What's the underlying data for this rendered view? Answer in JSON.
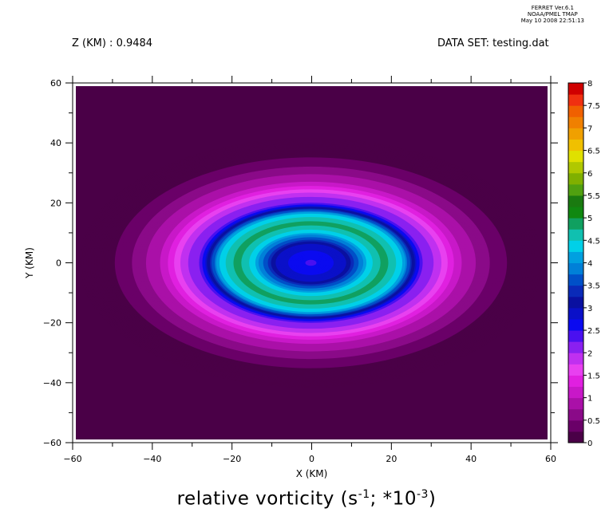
{
  "header": {
    "left_label": "Z (KM) : 0.9484",
    "right_label": "DATA SET: testing.dat",
    "ferret_lines": [
      "FERRET  Ver.6.1",
      "NOAA/PMEL TMAP",
      "May 10 2008 22:51:13"
    ]
  },
  "chart_data": {
    "type": "heatmap",
    "title": "relative vorticity",
    "title_units_prefix": " (s",
    "title_units_exp1": "-1",
    "title_units_mid": "; *10",
    "title_units_exp2": "-3",
    "title_units_suffix": ")",
    "xlabel": "X (KM)",
    "ylabel": "Y (KM)",
    "xlim": [
      -60,
      60
    ],
    "ylim": [
      -60,
      60
    ],
    "x_ticks": [
      "−60",
      "−40",
      "−20",
      "0",
      "20",
      "40",
      "60"
    ],
    "y_ticks": [
      "60",
      "40",
      "20",
      "0",
      "−20",
      "−40",
      "−60"
    ],
    "x_tick_values": [
      -60,
      -40,
      -20,
      0,
      20,
      40,
      60
    ],
    "y_tick_values": [
      60,
      40,
      20,
      0,
      -20,
      -40,
      -60
    ],
    "colorbar": {
      "levels": [
        0,
        0.25,
        0.5,
        0.75,
        1,
        1.25,
        1.5,
        1.75,
        2,
        2.25,
        2.5,
        2.75,
        3,
        3.25,
        3.5,
        3.75,
        4,
        4.25,
        4.5,
        4.75,
        5,
        5.25,
        5.5,
        5.75,
        6,
        6.25,
        6.5,
        6.75,
        7,
        7.25,
        7.5,
        7.75,
        8
      ],
      "labels": [
        "0",
        "0.5",
        "1",
        "1.5",
        "2",
        "2.5",
        "3",
        "3.5",
        "4",
        "4.5",
        "5",
        "5.5",
        "6",
        "6.5",
        "7",
        "7.5",
        "8"
      ],
      "label_values": [
        0,
        0.5,
        1,
        1.5,
        2,
        2.5,
        3,
        3.5,
        4,
        4.5,
        5,
        5.5,
        6,
        6.5,
        7,
        7.5,
        8
      ],
      "colors": [
        "#4a0047",
        "#6a0068",
        "#8a0a88",
        "#aa10a8",
        "#c818c8",
        "#e020e0",
        "#e840f0",
        "#c030f0",
        "#8a20f0",
        "#4a10f0",
        "#0a0af0",
        "#0a10c8",
        "#0a10a0",
        "#0a2ab8",
        "#0050c8",
        "#0080d8",
        "#00a0e0",
        "#00d0e8",
        "#10c0b0",
        "#10a060",
        "#108810",
        "#1a7a10",
        "#50a010",
        "#80b000",
        "#b0c800",
        "#e0e000",
        "#f0c000",
        "#f0a000",
        "#f08000",
        "#f06000",
        "#f03010",
        "#d00000",
        "#800000"
      ]
    },
    "field": {
      "description": "Concentric vortex: low core (~2.5) at origin, ring of ~4.5-5 near radius 15 km, dip to ~2 near radius 25 km, outer decay to 0 beyond ~45 km.",
      "center": [
        0,
        0
      ],
      "rings": [
        {
          "radius_km": 0,
          "value": 2.4
        },
        {
          "radius_km": 8,
          "value": 2.9
        },
        {
          "radius_km": 13,
          "value": 4.3
        },
        {
          "radius_km": 17,
          "value": 4.9
        },
        {
          "radius_km": 21,
          "value": 4.2
        },
        {
          "radius_km": 25,
          "value": 2.3
        },
        {
          "radius_km": 29,
          "value": 1.9
        },
        {
          "radius_km": 33,
          "value": 1.1
        },
        {
          "radius_km": 39,
          "value": 0.6
        },
        {
          "radius_km": 45,
          "value": 0.2
        },
        {
          "radius_km": 52,
          "value": 0.0
        }
      ]
    }
  }
}
